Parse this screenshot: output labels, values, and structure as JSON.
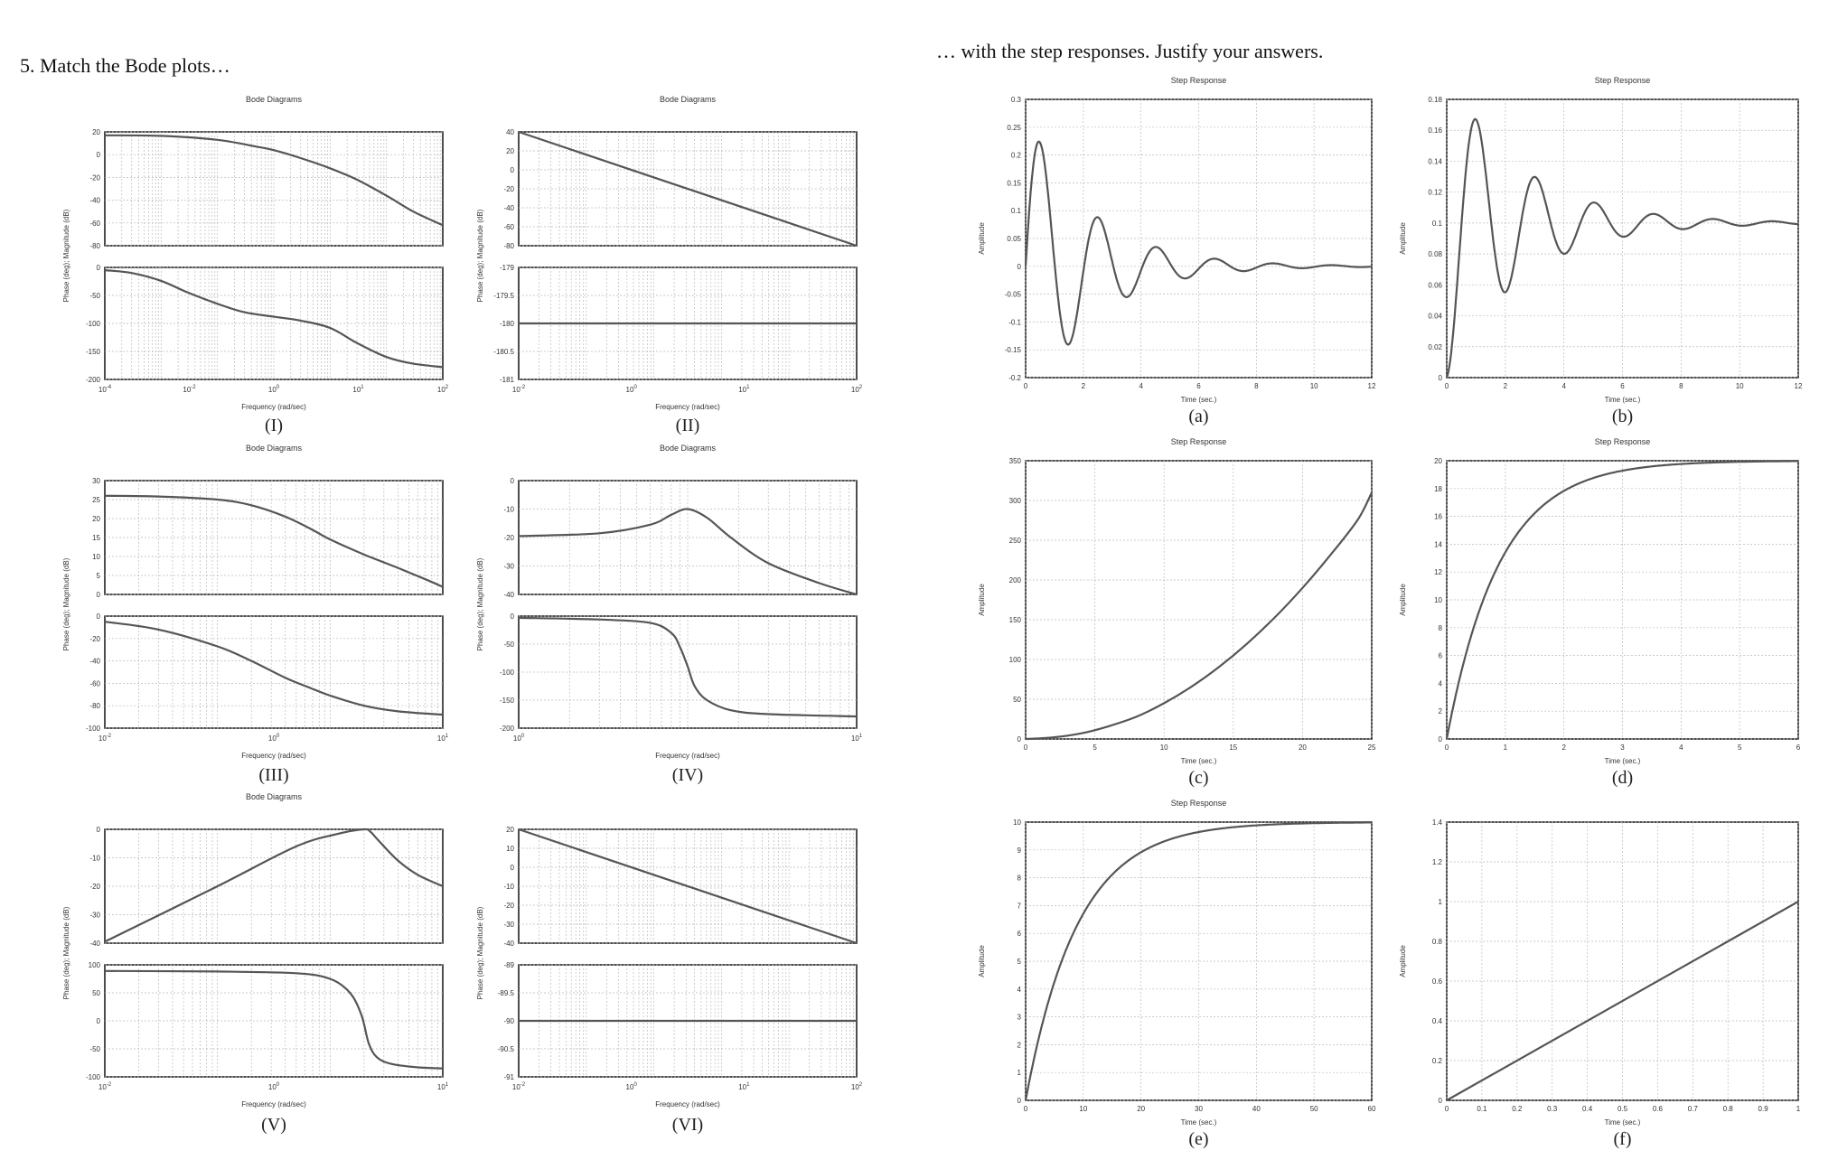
{
  "headings": {
    "left": "5.   Match the Bode plots…",
    "right": "… with the step responses. Justify your answers."
  },
  "colors": {
    "curve": "#555555",
    "grid": "#bbbbbb",
    "frame": "#222222"
  },
  "chart_data": [
    {
      "id": "I",
      "type": "line",
      "kind": "bode",
      "title": "Bode Diagrams",
      "caption": "(I)",
      "xlabel": "Frequency (rad/sec)",
      "ylabel": "Phase (deg); Magnitude (dB)",
      "xscale": "log",
      "xlim": [
        0.0001,
        100
      ],
      "xticks": [
        "10^-4",
        "10^-2",
        "10^0",
        "10^1",
        "10^2"
      ],
      "magnitude": {
        "ylim": [
          -80,
          20
        ],
        "yticks": [
          "20",
          "0",
          "-20",
          "-40",
          "-60",
          "-80"
        ],
        "x": [
          0.0001,
          0.001,
          0.01,
          0.05,
          0.1,
          0.3,
          1,
          3,
          10,
          30,
          100
        ],
        "y": [
          17,
          16.5,
          13,
          7,
          4,
          -3,
          -12,
          -22,
          -36,
          -50,
          -62
        ]
      },
      "phase": {
        "ylim": [
          -200,
          0
        ],
        "yticks": [
          "0",
          "-50",
          "-100",
          "-150",
          "-200"
        ],
        "x": [
          0.0001,
          0.0003,
          0.001,
          0.003,
          0.01,
          0.03,
          0.1,
          0.3,
          1,
          3,
          10,
          30,
          100
        ],
        "y": [
          -5,
          -10,
          -24,
          -45,
          -65,
          -80,
          -88,
          -95,
          -108,
          -135,
          -160,
          -172,
          -178
        ]
      },
      "grid": true
    },
    {
      "id": "II",
      "type": "line",
      "kind": "bode",
      "title": "Bode Diagrams",
      "caption": "(II)",
      "xlabel": "Frequency (rad/sec)",
      "ylabel": "Phase (deg); Magnitude (dB)",
      "xscale": "log",
      "xlim": [
        0.01,
        1000
      ],
      "xticks": [
        "10^-2",
        "10^0",
        "10^1",
        "10^2"
      ],
      "magnitude": {
        "ylim": [
          -80,
          40
        ],
        "yticks": [
          "40",
          "20",
          "0",
          "-20",
          "-40",
          "-60",
          "-80"
        ],
        "x": [
          0.01,
          1000
        ],
        "y": [
          40,
          -80
        ]
      },
      "phase": {
        "ylim": [
          -181,
          -179
        ],
        "yticks": [
          "-179",
          "-179.5",
          "-180",
          "-180.5",
          "-181"
        ],
        "x": [
          0.01,
          1000
        ],
        "y": [
          -180,
          -180
        ]
      },
      "grid": true
    },
    {
      "id": "III",
      "type": "line",
      "kind": "bode",
      "title": "Bode Diagrams",
      "caption": "(III)",
      "xlabel": "Frequency (rad/sec)",
      "ylabel": "Phase (deg); Magnitude (dB)",
      "xscale": "log",
      "xlim": [
        0.01,
        10
      ],
      "xticks": [
        "10^-2",
        "10^0",
        "10^1"
      ],
      "magnitude": {
        "ylim": [
          0,
          30
        ],
        "yticks": [
          "30",
          "25",
          "20",
          "15",
          "10",
          "5",
          "0"
        ],
        "x": [
          0.01,
          0.03,
          0.1,
          0.2,
          0.4,
          0.7,
          1,
          2,
          4,
          7,
          10
        ],
        "y": [
          26,
          25.8,
          25,
          23.5,
          20.5,
          17,
          14.5,
          10.5,
          7,
          4,
          2
        ]
      },
      "phase": {
        "ylim": [
          -100,
          0
        ],
        "yticks": [
          "0",
          "-20",
          "-40",
          "-60",
          "-80",
          "-100"
        ],
        "x": [
          0.01,
          0.03,
          0.1,
          0.2,
          0.4,
          0.7,
          1,
          2,
          4,
          10
        ],
        "y": [
          -5,
          -12,
          -27,
          -40,
          -55,
          -65,
          -71,
          -80,
          -85,
          -88
        ]
      },
      "grid": true
    },
    {
      "id": "IV",
      "type": "line",
      "kind": "bode",
      "title": "Bode Diagrams",
      "caption": "(IV)",
      "xlabel": "Frequency (rad/sec)",
      "ylabel": "Phase (deg); Magnitude (dB)",
      "xscale": "log",
      "xlim": [
        0.1,
        10
      ],
      "xticks": [
        "10^0",
        "10^1"
      ],
      "magnitude": {
        "ylim": [
          -40,
          0
        ],
        "yticks": [
          "0",
          "-10",
          "-20",
          "-30",
          "-40"
        ],
        "x": [
          0.1,
          0.3,
          0.6,
          0.8,
          1.0,
          1.3,
          1.8,
          3,
          6,
          10
        ],
        "y": [
          -19.5,
          -18.5,
          -15.5,
          -12,
          -10,
          -13,
          -20,
          -29,
          -36,
          -40
        ]
      },
      "phase": {
        "ylim": [
          -200,
          0
        ],
        "yticks": [
          "0",
          "-50",
          "-100",
          "-150",
          "-200"
        ],
        "x": [
          0.1,
          0.3,
          0.6,
          0.8,
          0.9,
          1.0,
          1.1,
          1.3,
          1.8,
          3,
          10
        ],
        "y": [
          -3,
          -6,
          -12,
          -30,
          -55,
          -90,
          -125,
          -150,
          -168,
          -175,
          -179
        ]
      },
      "grid": true
    },
    {
      "id": "V",
      "type": "line",
      "kind": "bode",
      "title": "Bode Diagrams",
      "caption": "(V)",
      "xlabel": "Frequency (rad/sec)",
      "ylabel": "Phase (deg); Magnitude (dB)",
      "xscale": "log",
      "xlim": [
        0.01,
        10
      ],
      "xticks": [
        "10^-2",
        "10^0",
        "10^1"
      ],
      "magnitude": {
        "ylim": [
          -40,
          0
        ],
        "yticks": [
          "0",
          "-10",
          "-20",
          "-30",
          "-40"
        ],
        "x": [
          0.01,
          0.1,
          0.5,
          1.2,
          2,
          2.3,
          2.7,
          4,
          6,
          10
        ],
        "y": [
          -39.5,
          -20,
          -6,
          -1.5,
          0,
          -1,
          -4,
          -11,
          -16,
          -20
        ]
      },
      "phase": {
        "ylim": [
          -100,
          100
        ],
        "yticks": [
          "100",
          "50",
          "0",
          "-50",
          "-100"
        ],
        "x": [
          0.01,
          0.1,
          0.5,
          1.0,
          1.5,
          1.9,
          2.2,
          2.6,
          3.5,
          6,
          10
        ],
        "y": [
          89,
          88,
          85,
          75,
          50,
          10,
          -40,
          -65,
          -77,
          -83,
          -85
        ]
      },
      "grid": true
    },
    {
      "id": "VI",
      "type": "line",
      "kind": "bode",
      "title": "",
      "caption": "(VI)",
      "xlabel": "Frequency (rad/sec)",
      "ylabel": "Phase (deg); Magnitude (dB)",
      "xscale": "log",
      "xlim": [
        0.01,
        1000
      ],
      "xticks": [
        "10^-2",
        "10^0",
        "10^1",
        "10^2"
      ],
      "magnitude": {
        "ylim": [
          -40,
          20
        ],
        "yticks": [
          "20",
          "10",
          "0",
          "-10",
          "-20",
          "-30",
          "-40"
        ],
        "x": [
          0.01,
          1000
        ],
        "y": [
          20,
          -40
        ]
      },
      "phase": {
        "ylim": [
          -91,
          -89
        ],
        "yticks": [
          "-89",
          "-89.5",
          "-90",
          "-90.5",
          "-91"
        ],
        "x": [
          0.01,
          1000
        ],
        "y": [
          -90,
          -90
        ]
      },
      "grid": true
    },
    {
      "id": "a",
      "type": "line",
      "kind": "step",
      "title": "Step Response",
      "caption": "(a)",
      "xlabel": "Time (sec.)",
      "ylabel": "Amplitude",
      "xlim": [
        0,
        12
      ],
      "ylim": [
        -0.2,
        0.3
      ],
      "xticks": [
        "0",
        "2",
        "4",
        "6",
        "8",
        "10",
        "12"
      ],
      "yticks": [
        "-0.2",
        "-0.15",
        "-0.1",
        "-0.05",
        "0",
        "0.05",
        "0.1",
        "0.15",
        "0.2",
        "0.25",
        "0.3"
      ],
      "response": {
        "final": 0,
        "amp": 0.28,
        "sigma": 0.46,
        "omega": 3.1,
        "phase": 0
      },
      "grid": true
    },
    {
      "id": "b",
      "type": "line",
      "kind": "step",
      "title": "Step Response",
      "caption": "(b)",
      "xlabel": "Time (sec.)",
      "ylabel": "Amplitude",
      "xlim": [
        0,
        12
      ],
      "ylim": [
        0,
        0.18
      ],
      "xticks": [
        "0",
        "2",
        "4",
        "6",
        "8",
        "10",
        "12"
      ],
      "yticks": [
        "0",
        "0.02",
        "0.04",
        "0.06",
        "0.08",
        "0.1",
        "0.12",
        "0.14",
        "0.16",
        "0.18"
      ],
      "response": {
        "final": 0.1,
        "amp": -0.1,
        "sigma": 0.4,
        "omega": 3.1,
        "phase": 1.5708
      },
      "grid": true
    },
    {
      "id": "c",
      "type": "line",
      "kind": "step",
      "title": "Step Response",
      "caption": "(c)",
      "xlabel": "Time (sec.)",
      "ylabel": "Amplitude",
      "xlim": [
        0,
        25
      ],
      "ylim": [
        0,
        350
      ],
      "xticks": [
        "0",
        "5",
        "10",
        "15",
        "20",
        "25"
      ],
      "yticks": [
        "0",
        "50",
        "100",
        "150",
        "200",
        "250",
        "300",
        "350"
      ],
      "response": {
        "x": [
          0,
          2,
          4,
          6,
          8,
          10,
          12,
          14,
          16,
          18,
          20,
          22,
          24,
          25
        ],
        "y": [
          0,
          2,
          7,
          16,
          28,
          45,
          66,
          91,
          120,
          153,
          190,
          231,
          276,
          310
        ]
      },
      "grid": true
    },
    {
      "id": "d",
      "type": "line",
      "kind": "step",
      "title": "Step Response",
      "caption": "(d)",
      "xlabel": "Time (sec.)",
      "ylabel": "Amplitude",
      "xlim": [
        0,
        6
      ],
      "ylim": [
        0,
        20
      ],
      "xticks": [
        "0",
        "1",
        "2",
        "3",
        "4",
        "5",
        "6"
      ],
      "yticks": [
        "0",
        "2",
        "4",
        "6",
        "8",
        "10",
        "12",
        "14",
        "16",
        "18",
        "20"
      ],
      "response": {
        "final": 20,
        "tau": 0.9
      },
      "grid": true
    },
    {
      "id": "e",
      "type": "line",
      "kind": "step",
      "title": "Step Response",
      "caption": "(e)",
      "xlabel": "Time (sec.)",
      "ylabel": "Amplitude",
      "xlim": [
        0,
        60
      ],
      "ylim": [
        0,
        10
      ],
      "xticks": [
        "0",
        "10",
        "20",
        "30",
        "40",
        "50",
        "60"
      ],
      "yticks": [
        "0",
        "1",
        "2",
        "3",
        "4",
        "5",
        "6",
        "7",
        "8",
        "9",
        "10"
      ],
      "response": {
        "final": 10,
        "tau": 9
      },
      "grid": true
    },
    {
      "id": "f",
      "type": "line",
      "kind": "step",
      "title": "",
      "caption": "(f)",
      "xlabel": "Time (sec.)",
      "ylabel": "Amplitude",
      "xlim": [
        0,
        1
      ],
      "ylim": [
        0,
        1.4
      ],
      "xticks": [
        "0",
        "0.1",
        "0.2",
        "0.3",
        "0.4",
        "0.5",
        "0.6",
        "0.7",
        "0.8",
        "0.9",
        "1"
      ],
      "yticks": [
        "0",
        "0.2",
        "0.4",
        "0.6",
        "0.8",
        "1",
        "1.2",
        "1.4"
      ],
      "response": {
        "x": [
          0,
          1
        ],
        "y": [
          0,
          1
        ]
      },
      "grid": true
    }
  ]
}
